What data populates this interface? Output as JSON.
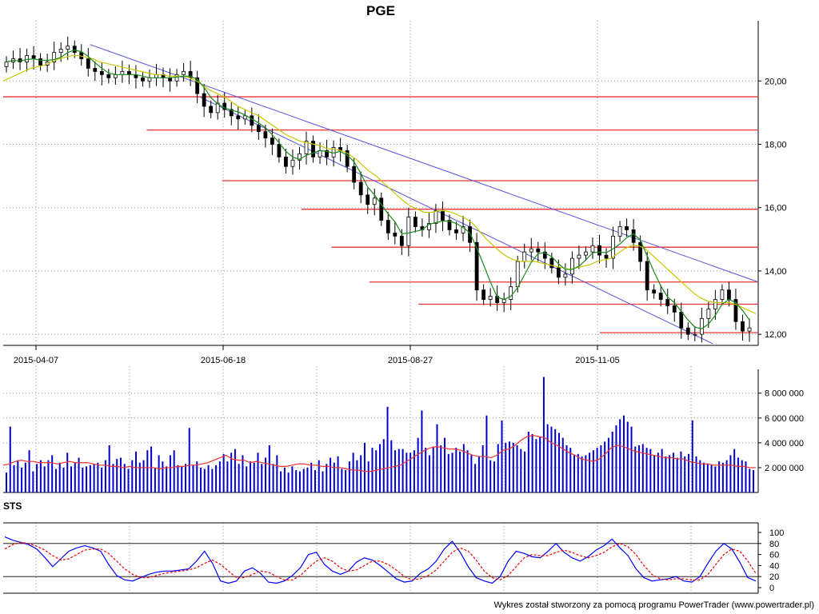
{
  "chart_data": [
    {
      "type": "candlestick",
      "title": "PGE",
      "ylim": [
        11.65,
        21.9
      ],
      "y_ticks": [
        "12,00",
        "14,00",
        "16,00",
        "18,00",
        "20,00"
      ],
      "y_tick_values": [
        12,
        14,
        16,
        18,
        20
      ],
      "x_labels": [
        "2015-04-07",
        "2015-06-18",
        "2015-08-27",
        "2015-11-05"
      ],
      "series": [
        {
          "kind": "close",
          "values": [
            20.6,
            20.7,
            20.6,
            20.8,
            20.7,
            20.5,
            20.6,
            20.9,
            21.0,
            21.1,
            20.9,
            20.7,
            20.4,
            20.3,
            20.2,
            20.1,
            20.2,
            20.3,
            20.2,
            20.1,
            20.0,
            20.1,
            20.2,
            20.1,
            20.0,
            20.2,
            20.3,
            20.1,
            19.6,
            19.2,
            19.0,
            19.3,
            19.1,
            18.9,
            18.8,
            18.9,
            18.6,
            18.4,
            18.2,
            18.0,
            17.6,
            17.3,
            17.5,
            17.7,
            18.1,
            17.6,
            17.8,
            17.6,
            17.9,
            17.8,
            17.3,
            16.8,
            16.4,
            16.1,
            16.3,
            15.6,
            15.2,
            15.1,
            14.8,
            15.7,
            15.4,
            15.3,
            15.5,
            15.9,
            15.6,
            15.3,
            15.2,
            15.4,
            14.9,
            13.4,
            13.1,
            13.2,
            13.0,
            13.1,
            13.5,
            14.3,
            14.6,
            14.7,
            14.6,
            14.4,
            14.1,
            13.8,
            13.9,
            14.4,
            14.5,
            14.6,
            14.8,
            14.5,
            14.4,
            15.1,
            15.4,
            15.3,
            14.9,
            14.3,
            13.4,
            13.3,
            13.1,
            12.9,
            12.7,
            12.2,
            12.0,
            12.0,
            12.5,
            12.8,
            13.1,
            13.4,
            13.1,
            12.4,
            12.1,
            12.2
          ]
        },
        {
          "kind": "moving_average",
          "color": "#c8c800",
          "values": [
            20.0,
            20.1,
            20.2,
            20.3,
            20.4,
            20.45,
            20.5,
            20.6,
            20.7,
            20.75,
            20.8,
            20.8,
            20.75,
            20.7,
            20.6,
            20.55,
            20.5,
            20.45,
            20.4,
            20.35,
            20.3,
            20.25,
            20.2,
            20.2,
            20.15,
            20.15,
            20.15,
            20.1,
            20.0,
            19.85,
            19.7,
            19.6,
            19.5,
            19.35,
            19.2,
            19.1,
            19.0,
            18.9,
            18.75,
            18.6,
            18.45,
            18.3,
            18.2,
            18.1,
            18.05,
            18.0,
            17.95,
            17.85,
            17.85,
            17.8,
            17.7,
            17.55,
            17.35,
            17.15,
            17.0,
            16.8,
            16.6,
            16.4,
            16.2,
            16.05,
            15.95,
            15.85,
            15.85,
            15.9,
            15.9,
            15.85,
            15.75,
            15.65,
            15.5,
            15.25,
            15.0,
            14.8,
            14.6,
            14.45,
            14.35,
            14.3,
            14.3,
            14.3,
            14.25,
            14.2,
            14.15,
            14.1,
            14.05,
            14.1,
            14.15,
            14.2,
            14.3,
            14.35,
            14.4,
            14.55,
            14.7,
            14.8,
            14.8,
            14.7,
            14.5,
            14.3,
            14.1,
            13.9,
            13.7,
            13.5,
            13.3,
            13.15,
            13.05,
            13.0,
            13.0,
            13.0,
            12.95,
            12.85,
            12.75,
            12.65
          ]
        }
      ],
      "annotations": {
        "horizontal_lines": [
          {
            "y": 19.5,
            "x_start_frac": 0.0
          },
          {
            "y": 18.45,
            "x_start_frac": 0.19
          },
          {
            "y": 16.85,
            "x_start_frac": 0.29
          },
          {
            "y": 15.95,
            "x_start_frac": 0.395
          },
          {
            "y": 14.75,
            "x_start_frac": 0.435
          },
          {
            "y": 13.65,
            "x_start_frac": 0.485
          },
          {
            "y": 12.95,
            "x_start_frac": 0.55
          },
          {
            "y": 12.05,
            "x_start_frac": 0.79
          }
        ],
        "trend_lines": [
          {
            "from": [
              0.115,
              21.15
            ],
            "to": [
              1.0,
              13.65
            ]
          },
          {
            "from": [
              0.26,
              19.5
            ],
            "to": [
              0.94,
              11.7
            ]
          }
        ]
      }
    },
    {
      "type": "bar",
      "title": "",
      "ylim": [
        0,
        9400000
      ],
      "y_ticks": [
        "2 000 000",
        "4 000 000",
        "6 000 000",
        "8 000 000"
      ],
      "y_tick_values": [
        2000000,
        4000000,
        6000000,
        8000000
      ],
      "series": [
        {
          "kind": "volume",
          "color": "#0000cc",
          "values": [
            1600000,
            5300000,
            2200000,
            2600000,
            2000000,
            2400000,
            3400000,
            1700000,
            2300000,
            2600000,
            2100000,
            2600000,
            3000000,
            1900000,
            2400000,
            2000000,
            3200000,
            2100000,
            2400000,
            2800000,
            2000000,
            2100000,
            2200000,
            2300000,
            2400000,
            2000000,
            2600000,
            3800000,
            2300000,
            2700000,
            2800000,
            2300000,
            1900000,
            2600000,
            3300000,
            2400000,
            2600000,
            3400000,
            3700000,
            2000000,
            3000000,
            2500000,
            2100000,
            3000000,
            3400000,
            2200000,
            2100000,
            2300000,
            5200000,
            2200000,
            2500000,
            2000000,
            1900000,
            2200000,
            1900000,
            2200000,
            2500000,
            3100000,
            2500000,
            3200000,
            3500000,
            2300000,
            3000000,
            2100000,
            2500000,
            2400000,
            3200000,
            2300000,
            2800000,
            3800000,
            2300000,
            3000000,
            1700000,
            2000000,
            1600000,
            2100000,
            1800000,
            1700000,
            1900000,
            2000000,
            2400000,
            1800000,
            2600000,
            1700000,
            2300000,
            2800000,
            2400000,
            2900000,
            1900000,
            1800000,
            2500000,
            3200000,
            2600000,
            3000000,
            4000000,
            2500000,
            3600000,
            3400000,
            3900000,
            4300000,
            6900000,
            4200000,
            3400000,
            3500000,
            3500000,
            3200000,
            3200000,
            3400000,
            4400000,
            6600000,
            3600000,
            3000000,
            3700000,
            5500000,
            3800000,
            4400000,
            3100000,
            3200000,
            3600000,
            3300000,
            3900000,
            3400000,
            3000000,
            2300000,
            2900000,
            3800000,
            6200000,
            2600000,
            2500000,
            3900000,
            5800000,
            4000000,
            4100000,
            4000000,
            3800000,
            3500000,
            3300000,
            4900000,
            4700000,
            4300000,
            4500000,
            9300000,
            5500000,
            5300000,
            5100000,
            4800000,
            4400000,
            3800000,
            3600000,
            3000000,
            3100000,
            2900000,
            3000000,
            3200000,
            3400000,
            3600000,
            3800000,
            4100000,
            4400000,
            4900000,
            5400000,
            5900000,
            6200000,
            5700000,
            5300000,
            3700000,
            3800000,
            3900000,
            3600000,
            3500000,
            3000000,
            3200000,
            3500000,
            2900000,
            3000000,
            3200000,
            2800000,
            3300000,
            2900000,
            3100000,
            5800000,
            2900000,
            2600000,
            2400000,
            2300000,
            2200000,
            2100000,
            2500000,
            2400000,
            2600000,
            3000000,
            3500000,
            2800000,
            2600000,
            2500000,
            1900000,
            1800000
          ]
        },
        {
          "kind": "moving_average",
          "color": "#ee3333",
          "values": [
            2200000,
            2300000,
            2500000,
            2600000,
            2500000,
            2500000,
            2400000,
            2400000,
            2400000,
            2300000,
            2400000,
            2500000,
            2400000,
            2400000,
            2400000,
            2300000,
            2200000,
            2200000,
            2100000,
            2100000,
            2000000,
            2100000,
            2000000,
            2000000,
            2000000,
            2000000,
            1900000,
            2000000,
            2000000,
            2100000,
            2100000,
            2200000,
            2200000,
            2300000,
            2400000,
            2600000,
            2800000,
            3000000,
            2700000,
            2600000,
            2600000,
            2400000,
            2500000,
            2400000,
            2300000,
            2200000,
            2100000,
            2100000,
            2200000,
            2300000,
            2300000,
            2200000,
            2200000,
            2100000,
            2100000,
            2000000,
            2000000,
            1900000,
            1800000,
            1800000,
            1700000,
            1700000,
            1800000,
            1900000,
            2000000,
            2100000,
            2200000,
            2500000,
            2800000,
            3100000,
            3400000,
            3600000,
            3700000,
            3600000,
            3500000,
            3500000,
            3400000,
            3200000,
            3000000,
            2900000,
            2900000,
            2800000,
            3000000,
            3400000,
            3500000,
            3800000,
            4200000,
            4500000,
            4600000,
            4500000,
            4400000,
            4000000,
            3800000,
            3500000,
            3200000,
            3000000,
            2700000,
            2600000,
            2500000,
            2700000,
            3100000,
            3600000,
            3800000,
            3700000,
            3500000,
            3300000,
            3200000,
            3100000,
            3000000,
            2900000,
            2800000,
            2800000,
            2700000,
            2700000,
            2500000,
            2400000,
            2300000,
            2300000,
            2200000,
            2200000,
            2200000,
            2200000,
            2100000,
            2100000,
            2000000,
            2000000
          ]
        }
      ]
    },
    {
      "type": "line",
      "title": "STS",
      "ylim": [
        0,
        100
      ],
      "y_ticks": [
        "0",
        "20",
        "40",
        "60",
        "80",
        "100"
      ],
      "y_tick_values": [
        0,
        20,
        40,
        60,
        80,
        100
      ],
      "reference_lines": [
        20,
        80
      ],
      "series": [
        {
          "kind": "%K",
          "color": "#0000ff",
          "values": [
            92,
            86,
            82,
            78,
            70,
            55,
            38,
            52,
            66,
            72,
            76,
            72,
            66,
            42,
            22,
            14,
            12,
            18,
            24,
            28,
            30,
            30,
            32,
            34,
            48,
            66,
            44,
            12,
            8,
            12,
            30,
            36,
            26,
            10,
            8,
            12,
            22,
            36,
            60,
            64,
            42,
            30,
            24,
            30,
            46,
            54,
            50,
            40,
            28,
            16,
            10,
            12,
            26,
            34,
            48,
            70,
            84,
            64,
            38,
            18,
            12,
            8,
            20,
            48,
            66,
            62,
            56,
            54,
            66,
            80,
            64,
            54,
            48,
            56,
            68,
            76,
            88,
            72,
            58,
            34,
            18,
            12,
            14,
            16,
            20,
            12,
            10,
            20,
            44,
            66,
            80,
            70,
            46,
            18,
            12
          ]
        },
        {
          "kind": "%D",
          "color": "#ee0000",
          "dashed": true,
          "values": [
            70,
            78,
            82,
            80,
            75,
            68,
            58,
            50,
            52,
            60,
            68,
            70,
            70,
            62,
            48,
            34,
            24,
            18,
            18,
            22,
            26,
            28,
            30,
            32,
            36,
            44,
            50,
            42,
            30,
            18,
            18,
            24,
            30,
            28,
            20,
            14,
            14,
            22,
            36,
            48,
            54,
            48,
            36,
            30,
            32,
            40,
            48,
            48,
            42,
            32,
            20,
            14,
            16,
            22,
            32,
            48,
            64,
            72,
            66,
            50,
            30,
            18,
            14,
            22,
            38,
            54,
            60,
            58,
            58,
            64,
            68,
            64,
            58,
            54,
            58,
            64,
            74,
            80,
            74,
            60,
            40,
            24,
            16,
            14,
            16,
            16,
            14,
            14,
            24,
            42,
            60,
            70,
            66,
            48,
            26
          ]
        }
      ]
    }
  ],
  "footer": "Wykres został stworzony za pomocą programu PowerTrader (www.powertrader.pl)"
}
